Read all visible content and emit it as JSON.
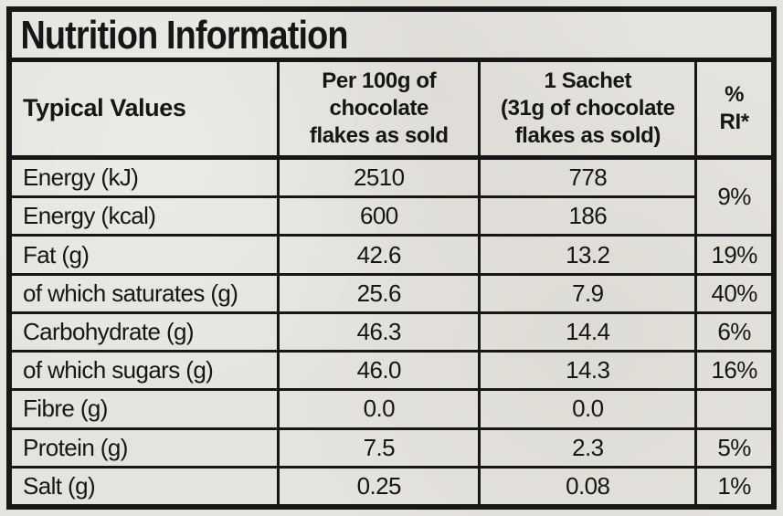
{
  "title": "Nutrition Information",
  "colors": {
    "background": "#e5e3dd",
    "ink": "#161616"
  },
  "table": {
    "columns": [
      {
        "label": "Typical Values"
      },
      {
        "label": "Per 100g of\nchocolate\nflakes as sold"
      },
      {
        "label": "1 Sachet\n(31g of chocolate\nflakes as sold)"
      },
      {
        "label": "%\nRI*"
      }
    ],
    "rows": [
      {
        "label": "Energy (kJ)",
        "per100g": "2510",
        "sachet": "778",
        "ri": "9%",
        "ri_rowspan": 2
      },
      {
        "label": "Energy (kcal)",
        "per100g": "600",
        "sachet": "186",
        "ri": null
      },
      {
        "label": "Fat (g)",
        "per100g": "42.6",
        "sachet": "13.2",
        "ri": "19%"
      },
      {
        "label": "of which saturates (g)",
        "per100g": "25.6",
        "sachet": "7.9",
        "ri": "40%"
      },
      {
        "label": "Carbohydrate (g)",
        "per100g": "46.3",
        "sachet": "14.4",
        "ri": "6%"
      },
      {
        "label": "of which sugars (g)",
        "per100g": "46.0",
        "sachet": "14.3",
        "ri": "16%"
      },
      {
        "label": "Fibre (g)",
        "per100g": "0.0",
        "sachet": "0.0",
        "ri": ""
      },
      {
        "label": "Protein (g)",
        "per100g": "7.5",
        "sachet": "2.3",
        "ri": "5%"
      },
      {
        "label": "Salt (g)",
        "per100g": "0.25",
        "sachet": "0.08",
        "ri": "1%"
      }
    ]
  }
}
